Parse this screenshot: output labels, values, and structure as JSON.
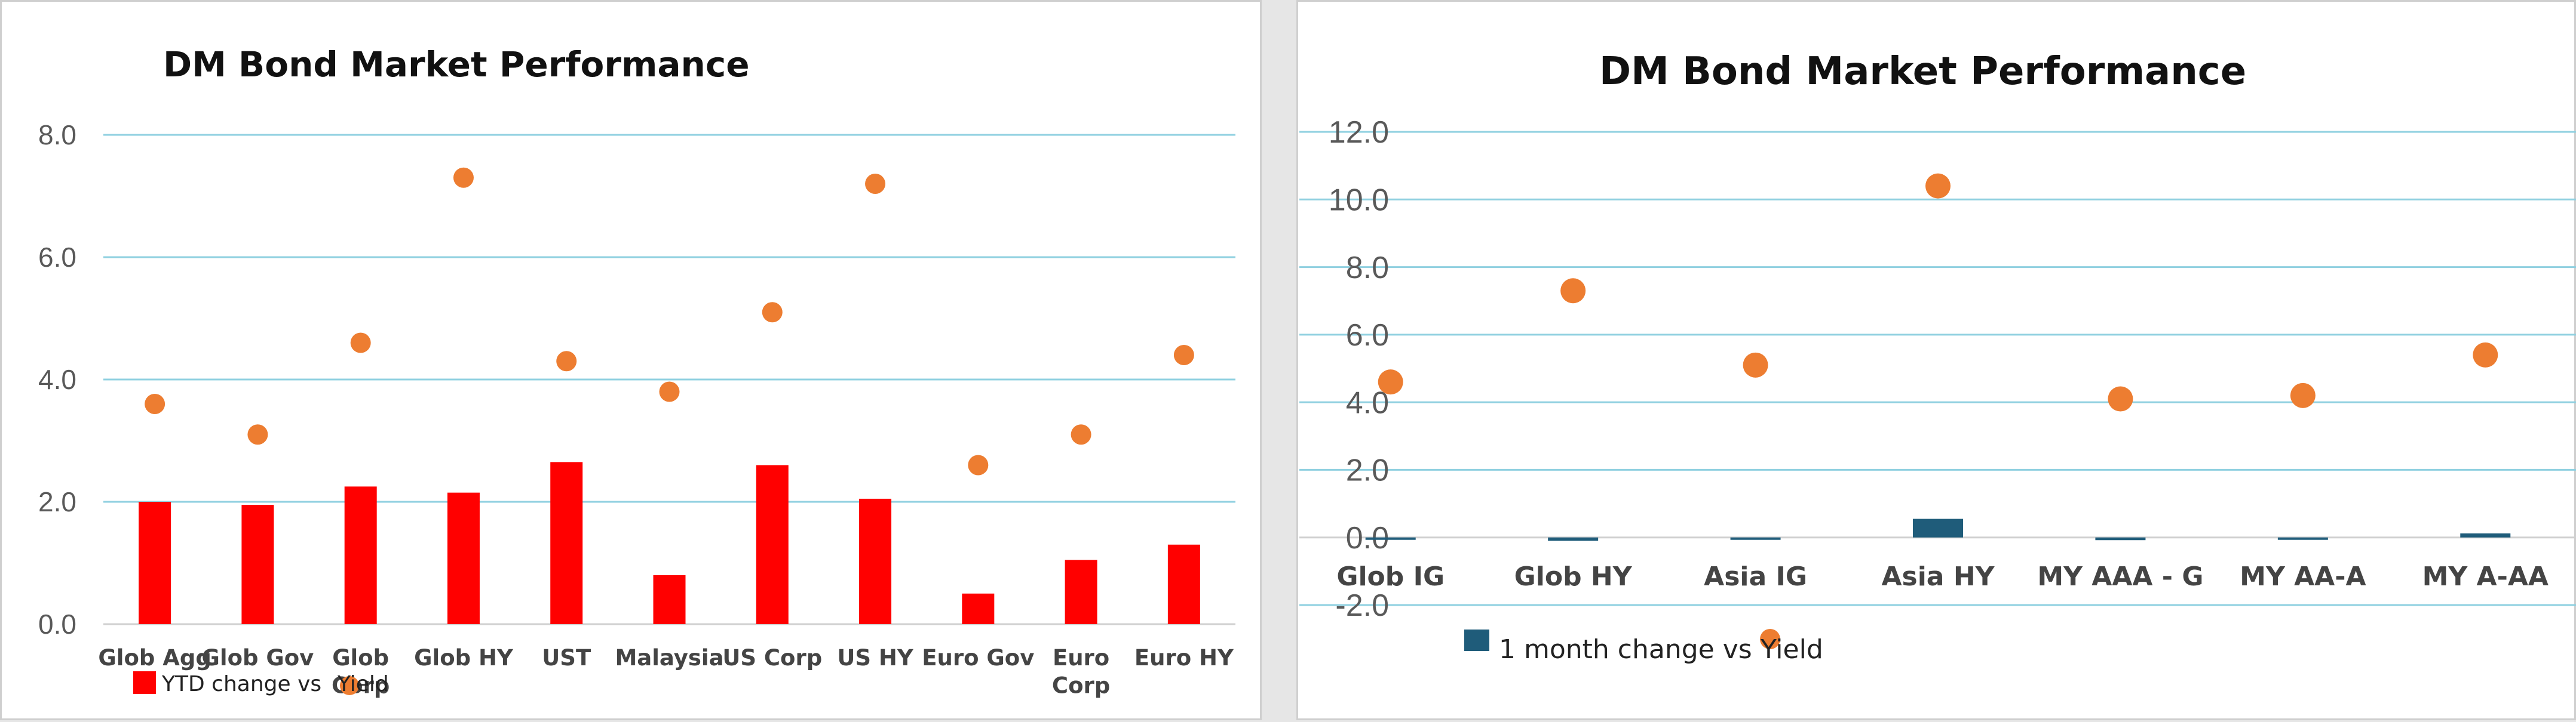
{
  "chart_data": [
    {
      "type": "bar",
      "title": "DM Bond Market Performance",
      "categories": [
        "Glob Agg",
        "Glob Gov",
        "Glob Corp",
        "Glob HY",
        "UST",
        "Malaysia",
        "US Corp",
        "US HY",
        "Euro Gov",
        "Euro Corp",
        "Euro HY"
      ],
      "series": [
        {
          "name": "YTD change vs",
          "kind": "bar",
          "color": "#ff0000",
          "values": [
            2.0,
            1.95,
            2.25,
            2.15,
            2.65,
            0.8,
            2.6,
            2.05,
            0.5,
            1.05,
            1.3
          ]
        },
        {
          "name": "Yield",
          "kind": "scatter",
          "color": "#ed7d31",
          "values": [
            3.6,
            3.1,
            4.6,
            7.3,
            4.3,
            3.8,
            5.1,
            7.2,
            2.6,
            3.1,
            4.4
          ]
        }
      ],
      "yticks": [
        "0.0",
        "2.0",
        "4.0",
        "6.0",
        "8.0"
      ],
      "ylim": [
        0,
        8
      ],
      "grid": true,
      "legend": "bottom-left"
    },
    {
      "type": "bar",
      "title": "DM Bond Market Performance",
      "categories": [
        "Glob IG",
        "Glob HY",
        "Asia IG",
        "Asia HY",
        "MY AAA - G",
        "MY AA-A",
        "MY A-AA"
      ],
      "series": [
        {
          "name": "1 month change vs",
          "kind": "bar",
          "color": "#1f5c7a",
          "values": [
            0.0,
            -0.1,
            -0.05,
            0.55,
            -0.08,
            0.0,
            0.12
          ]
        },
        {
          "name": "Yield",
          "kind": "scatter",
          "color": "#ed7d31",
          "values": [
            4.6,
            7.3,
            5.1,
            10.4,
            4.1,
            4.2,
            5.4
          ]
        }
      ],
      "yticks": [
        "-2.0",
        "0.0",
        "2.0",
        "4.0",
        "6.0",
        "8.0",
        "10.0",
        "12.0"
      ],
      "ylim": [
        -2,
        12
      ],
      "grid": true,
      "legend": "bottom-left"
    }
  ]
}
